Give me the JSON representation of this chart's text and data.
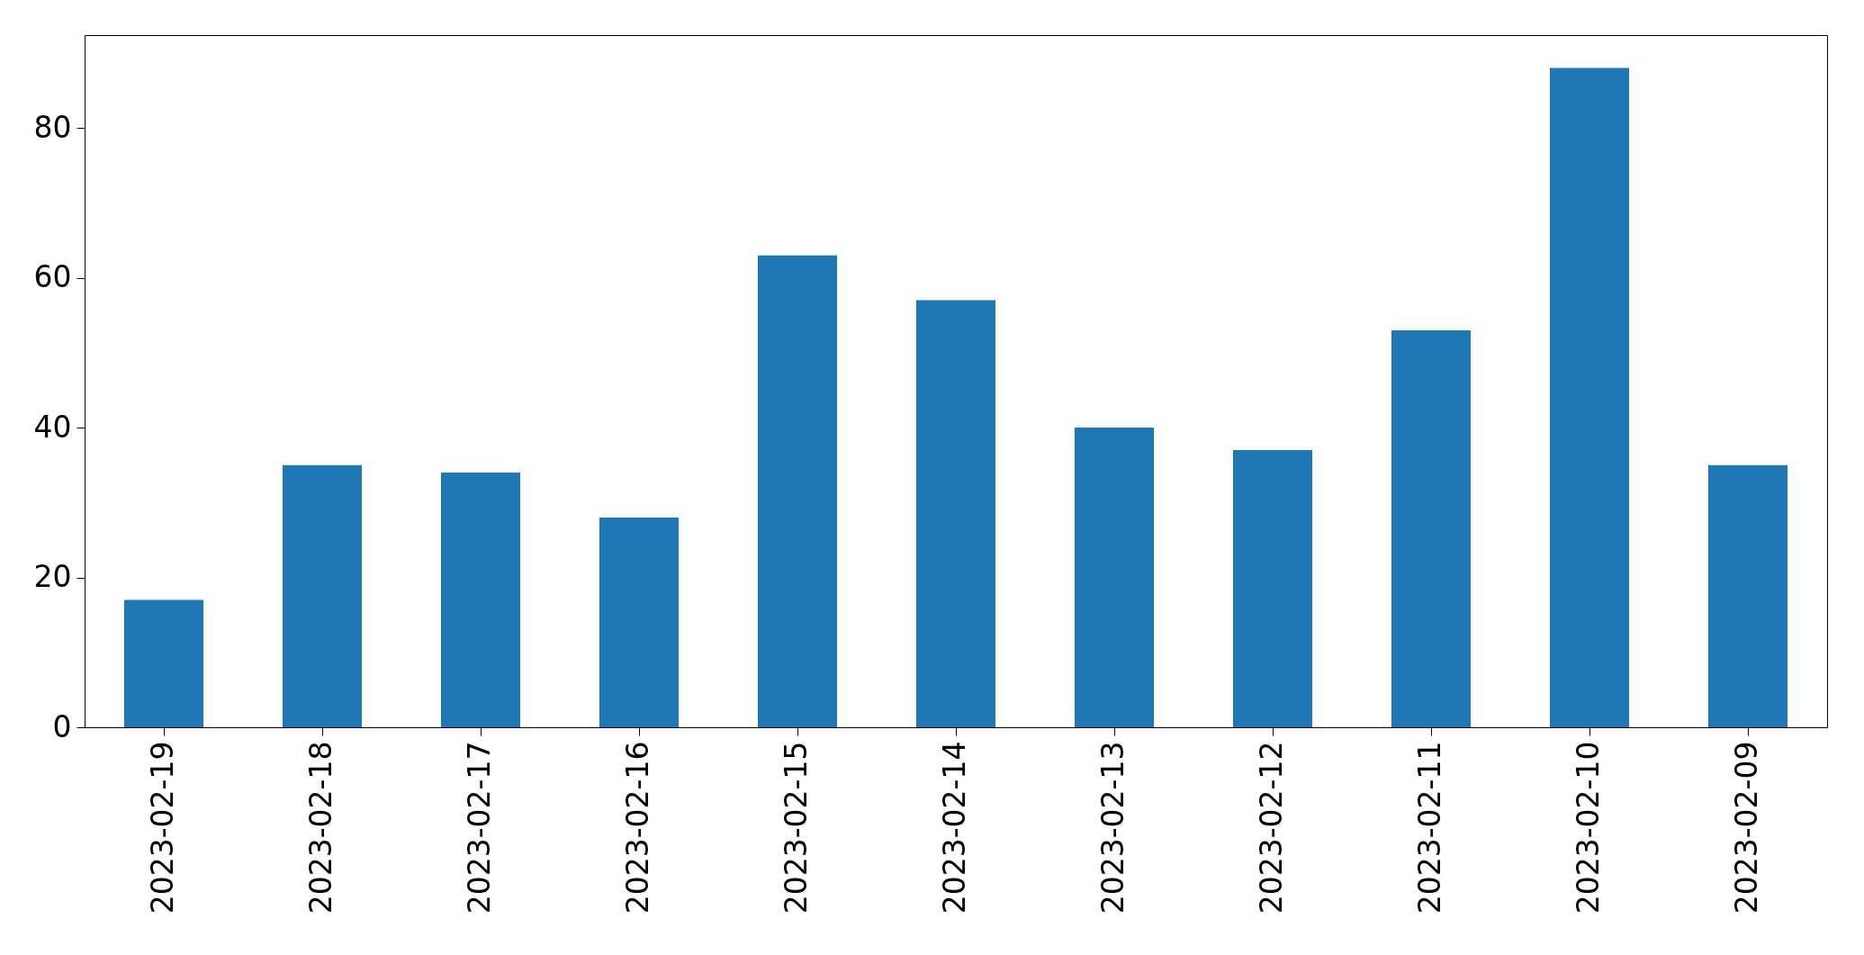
{
  "chart_data": {
    "type": "bar",
    "categories": [
      "2023-02-19",
      "2023-02-18",
      "2023-02-17",
      "2023-02-16",
      "2023-02-15",
      "2023-02-14",
      "2023-02-13",
      "2023-02-12",
      "2023-02-11",
      "2023-02-10",
      "2023-02-09"
    ],
    "values": [
      17,
      35,
      34,
      28,
      63,
      57,
      40,
      37,
      53,
      88,
      35
    ],
    "color": "#1f77b4",
    "ylim": [
      0,
      92.4
    ],
    "yticks": [
      0,
      20,
      40,
      60,
      80
    ],
    "grid": false
  }
}
